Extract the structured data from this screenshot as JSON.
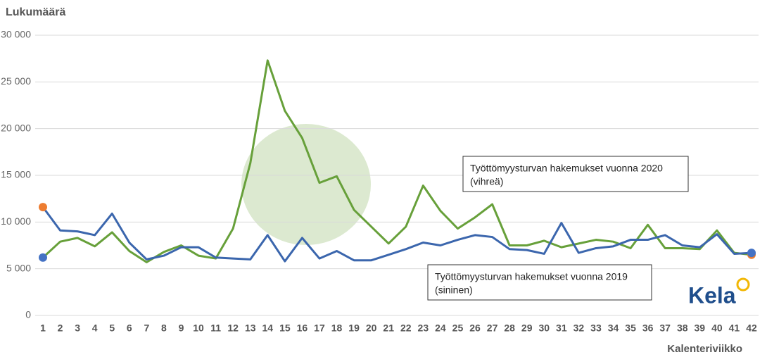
{
  "chart_data": {
    "type": "line",
    "ylabel": "Lukumäärä",
    "xlabel": "Kalenteriviikko",
    "x": [
      1,
      2,
      3,
      4,
      5,
      6,
      7,
      8,
      9,
      10,
      11,
      12,
      13,
      14,
      15,
      16,
      17,
      18,
      19,
      20,
      21,
      22,
      23,
      24,
      25,
      26,
      27,
      28,
      29,
      30,
      31,
      32,
      33,
      34,
      35,
      36,
      37,
      38,
      39,
      40,
      41,
      42
    ],
    "xlim": [
      1,
      42
    ],
    "ylim": [
      0,
      30000
    ],
    "yticks": [
      0,
      {
        "value": 5000,
        "label": "5 000"
      },
      {
        "value": 10000,
        "label": "10 000"
      },
      {
        "value": 15000,
        "label": "15 000"
      },
      {
        "value": 20000,
        "label": "20 000"
      },
      {
        "value": 25000,
        "label": "25 000"
      },
      {
        "value": 30000,
        "label": "30 000"
      }
    ],
    "grid": true,
    "series": [
      {
        "name": "Työttömyysturvan hakemukset vuonna 2020",
        "note": "(vihreä)",
        "color": "#67a03a",
        "values": [
          6200,
          7900,
          8300,
          7400,
          8900,
          6900,
          5700,
          6800,
          7500,
          6400,
          6100,
          9300,
          16300,
          27300,
          21900,
          19000,
          14200,
          14900,
          11300,
          9500,
          7700,
          9500,
          13900,
          11200,
          9300,
          10500,
          11900,
          7500,
          7500,
          8000,
          7300,
          7700,
          8100,
          7900,
          7200,
          9700,
          7200,
          7200,
          7100,
          9100,
          6700,
          6500
        ]
      },
      {
        "name": "Työttömyysturvan hakemukset vuonna 2019",
        "note": "(sininen)",
        "color": "#3b66ad",
        "values": [
          11600,
          9100,
          9000,
          8600,
          10900,
          7800,
          6000,
          6400,
          7300,
          7300,
          6200,
          6100,
          6000,
          8600,
          5800,
          8300,
          6100,
          6900,
          5900,
          5900,
          6500,
          7100,
          7800,
          7500,
          8100,
          8600,
          8400,
          7100,
          7000,
          6600,
          9900,
          6700,
          7200,
          7400,
          8100,
          8100,
          8600,
          7500,
          7300,
          8700,
          6600,
          6700
        ]
      }
    ],
    "endpoint_colors": [
      "#ed7d31",
      "#4472c4"
    ],
    "logo": "Kela"
  }
}
